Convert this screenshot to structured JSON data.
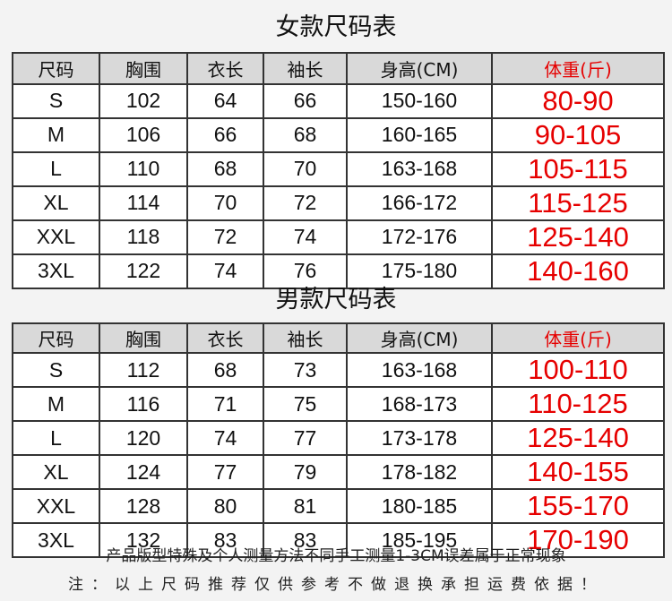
{
  "women": {
    "title": "女款尺码表",
    "headers": [
      "尺码",
      "胸围",
      "衣长",
      "袖长",
      "身高(CM)",
      "体重(斤)"
    ],
    "rows": [
      [
        "S",
        "102",
        "64",
        "66",
        "150-160",
        "80-90"
      ],
      [
        "M",
        "106",
        "66",
        "68",
        "160-165",
        "90-105"
      ],
      [
        "L",
        "110",
        "68",
        "70",
        "163-168",
        "105-115"
      ],
      [
        "XL",
        "114",
        "70",
        "72",
        "166-172",
        "115-125"
      ],
      [
        "XXL",
        "118",
        "72",
        "74",
        "172-176",
        "125-140"
      ],
      [
        "3XL",
        "122",
        "74",
        "76",
        "175-180",
        "140-160"
      ]
    ]
  },
  "men": {
    "title": "男款尺码表",
    "headers": [
      "尺码",
      "胸围",
      "衣长",
      "袖长",
      "身高(CM)",
      "体重(斤)"
    ],
    "rows": [
      [
        "S",
        "112",
        "68",
        "73",
        "163-168",
        "100-110"
      ],
      [
        "M",
        "116",
        "71",
        "75",
        "168-173",
        "110-125"
      ],
      [
        "L",
        "120",
        "74",
        "77",
        "173-178",
        "125-140"
      ],
      [
        "XL",
        "124",
        "77",
        "79",
        "178-182",
        "140-155"
      ],
      [
        "XXL",
        "128",
        "80",
        "81",
        "180-185",
        "155-170"
      ],
      [
        "3XL",
        "132",
        "83",
        "83",
        "185-195",
        "170-190"
      ]
    ]
  },
  "notes": [
    "产品版型特殊及个人测量方法不同手工测量1-3CM误差属于正常现象",
    "注：以上尺码推荐仅供参考不做退换承担运费依据！"
  ],
  "colors": {
    "weight": "#e60000",
    "header_bg": "#d9d9d9"
  }
}
